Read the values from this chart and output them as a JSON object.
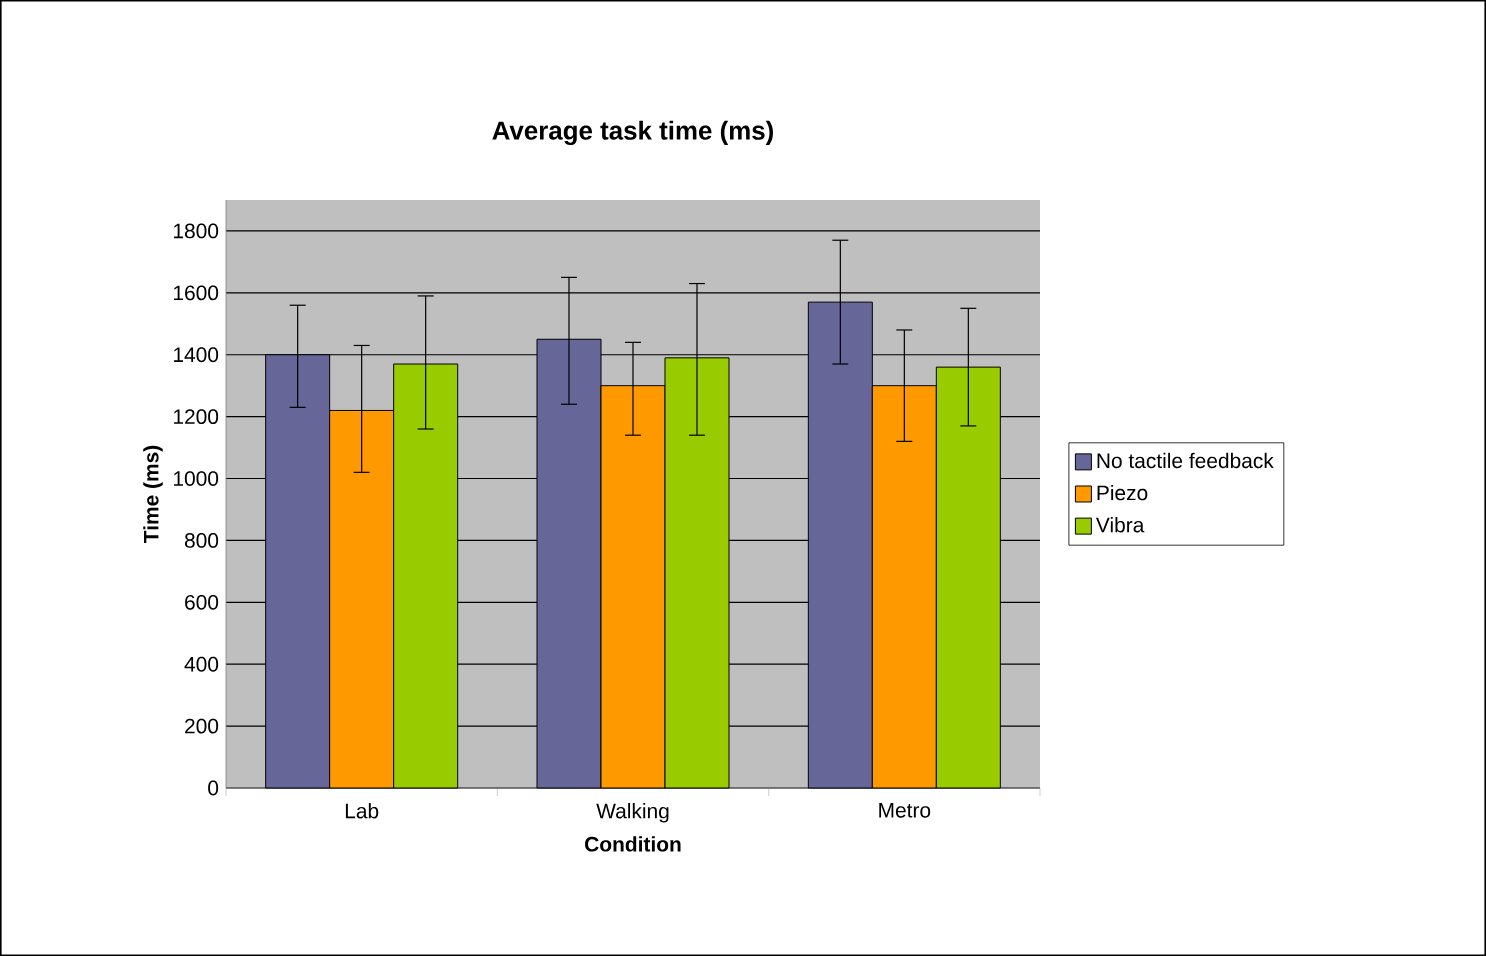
{
  "chart_data": {
    "type": "bar",
    "title": "Average task time (ms)",
    "xlabel": "Condition",
    "ylabel": "Time (ms)",
    "categories": [
      "Lab",
      "Walking",
      "Metro"
    ],
    "series": [
      {
        "name": "No tactile feedback",
        "color": "#666699",
        "values": [
          1400,
          1450,
          1570
        ],
        "errors": [
          [
            1230,
            1560
          ],
          [
            1240,
            1650
          ],
          [
            1370,
            1770
          ]
        ]
      },
      {
        "name": "Piezo",
        "color": "#ff9900",
        "values": [
          1220,
          1300,
          1300
        ],
        "errors": [
          [
            1020,
            1430
          ],
          [
            1140,
            1440
          ],
          [
            1120,
            1480
          ]
        ]
      },
      {
        "name": "Vibra",
        "color": "#99cc00",
        "values": [
          1370,
          1390,
          1360
        ],
        "errors": [
          [
            1160,
            1590
          ],
          [
            1140,
            1630
          ],
          [
            1170,
            1550
          ]
        ]
      }
    ],
    "ylim": [
      0,
      1900
    ],
    "yticks": [
      0,
      200,
      400,
      600,
      800,
      1000,
      1200,
      1400,
      1600,
      1800
    ],
    "grid": "y",
    "legend": "right"
  }
}
